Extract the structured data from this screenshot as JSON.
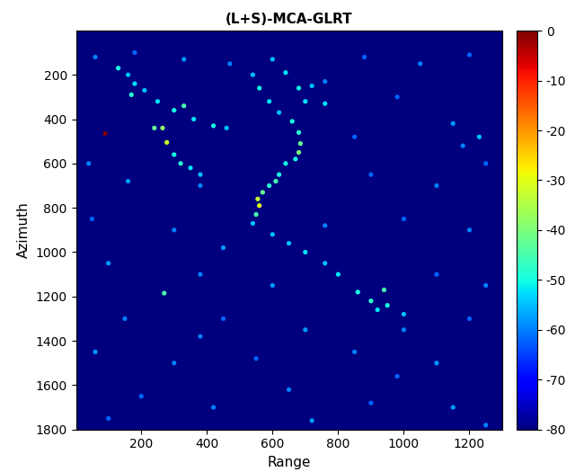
{
  "chart_data": {
    "type": "heatmap",
    "title": "(L+S)-MCA-GLRT",
    "x_label": "Range",
    "y_label": "Azimuth",
    "xlim": [
      1,
      1300
    ],
    "xticks": [
      200,
      400,
      600,
      800,
      1000,
      1200
    ],
    "ylim": [
      1800,
      1
    ],
    "yticks": [
      200,
      400,
      600,
      800,
      1000,
      1200,
      1400,
      1600,
      1800
    ],
    "colorbar": {
      "lim": [
        -80,
        0
      ],
      "ticks": [
        0,
        -10,
        -20,
        -30,
        -40,
        -50,
        -60,
        -70,
        -80
      ]
    },
    "background": -80,
    "points": [
      [
        60,
        120,
        -60
      ],
      [
        180,
        100,
        -62
      ],
      [
        330,
        130,
        -58
      ],
      [
        470,
        150,
        -60
      ],
      [
        880,
        120,
        -62
      ],
      [
        1050,
        150,
        -60
      ],
      [
        1200,
        110,
        -62
      ],
      [
        760,
        230,
        -60
      ],
      [
        980,
        300,
        -62
      ],
      [
        1150,
        420,
        -58
      ],
      [
        1230,
        480,
        -55
      ],
      [
        1180,
        520,
        -60
      ],
      [
        850,
        480,
        -62
      ],
      [
        40,
        600,
        -60
      ],
      [
        160,
        680,
        -58
      ],
      [
        380,
        700,
        -60
      ],
      [
        900,
        650,
        -62
      ],
      [
        1100,
        700,
        -60
      ],
      [
        1250,
        600,
        -62
      ],
      [
        50,
        850,
        -62
      ],
      [
        300,
        900,
        -60
      ],
      [
        450,
        980,
        -58
      ],
      [
        760,
        880,
        -60
      ],
      [
        1000,
        850,
        -62
      ],
      [
        1200,
        900,
        -60
      ],
      [
        100,
        1050,
        -58
      ],
      [
        380,
        1100,
        -60
      ],
      [
        600,
        1150,
        -58
      ],
      [
        1100,
        1100,
        -62
      ],
      [
        1250,
        1150,
        -60
      ],
      [
        150,
        1300,
        -60
      ],
      [
        450,
        1300,
        -62
      ],
      [
        700,
        1350,
        -58
      ],
      [
        1000,
        1350,
        -60
      ],
      [
        1200,
        1300,
        -62
      ],
      [
        60,
        1450,
        -58
      ],
      [
        300,
        1500,
        -60
      ],
      [
        550,
        1480,
        -62
      ],
      [
        850,
        1450,
        -60
      ],
      [
        1100,
        1500,
        -58
      ],
      [
        200,
        1650,
        -62
      ],
      [
        420,
        1700,
        -60
      ],
      [
        650,
        1620,
        -60
      ],
      [
        900,
        1680,
        -62
      ],
      [
        1150,
        1700,
        -58
      ],
      [
        1250,
        1780,
        -60
      ],
      [
        100,
        1750,
        -62
      ],
      [
        720,
        1760,
        -58
      ],
      [
        380,
        1380,
        -60
      ],
      [
        980,
        1560,
        -62
      ],
      [
        130,
        170,
        -50
      ],
      [
        160,
        200,
        -55
      ],
      [
        180,
        240,
        -52
      ],
      [
        170,
        290,
        -48
      ],
      [
        210,
        270,
        -55
      ],
      [
        250,
        320,
        -52
      ],
      [
        300,
        360,
        -50
      ],
      [
        330,
        340,
        -45
      ],
      [
        360,
        400,
        -52
      ],
      [
        420,
        430,
        -50
      ],
      [
        460,
        440,
        -55
      ],
      [
        240,
        440,
        -42
      ],
      [
        265,
        440,
        -38
      ],
      [
        278,
        505,
        -32
      ],
      [
        300,
        560,
        -50
      ],
      [
        320,
        600,
        -48
      ],
      [
        350,
        620,
        -52
      ],
      [
        380,
        650,
        -55
      ],
      [
        540,
        200,
        -55
      ],
      [
        560,
        260,
        -50
      ],
      [
        590,
        320,
        -52
      ],
      [
        620,
        370,
        -55
      ],
      [
        660,
        410,
        -50
      ],
      [
        680,
        460,
        -48
      ],
      [
        685,
        510,
        -42
      ],
      [
        680,
        550,
        -40
      ],
      [
        670,
        580,
        -50
      ],
      [
        600,
        130,
        -55
      ],
      [
        640,
        190,
        -52
      ],
      [
        680,
        260,
        -50
      ],
      [
        700,
        320,
        -52
      ],
      [
        720,
        250,
        -55
      ],
      [
        760,
        330,
        -52
      ],
      [
        560,
        790,
        -30
      ],
      [
        555,
        760,
        -33
      ],
      [
        570,
        730,
        -42
      ],
      [
        590,
        700,
        -48
      ],
      [
        610,
        680,
        -45
      ],
      [
        620,
        650,
        -50
      ],
      [
        640,
        600,
        -50
      ],
      [
        550,
        830,
        -45
      ],
      [
        540,
        870,
        -55
      ],
      [
        600,
        920,
        -55
      ],
      [
        650,
        960,
        -55
      ],
      [
        700,
        1000,
        -52
      ],
      [
        760,
        1050,
        -55
      ],
      [
        800,
        1100,
        -52
      ],
      [
        860,
        1180,
        -50
      ],
      [
        900,
        1220,
        -48
      ],
      [
        940,
        1170,
        -45
      ],
      [
        950,
        1240,
        -50
      ],
      [
        920,
        1260,
        -52
      ],
      [
        1000,
        1280,
        -55
      ],
      [
        270,
        1185,
        -45
      ],
      [
        90,
        465,
        0
      ]
    ]
  }
}
